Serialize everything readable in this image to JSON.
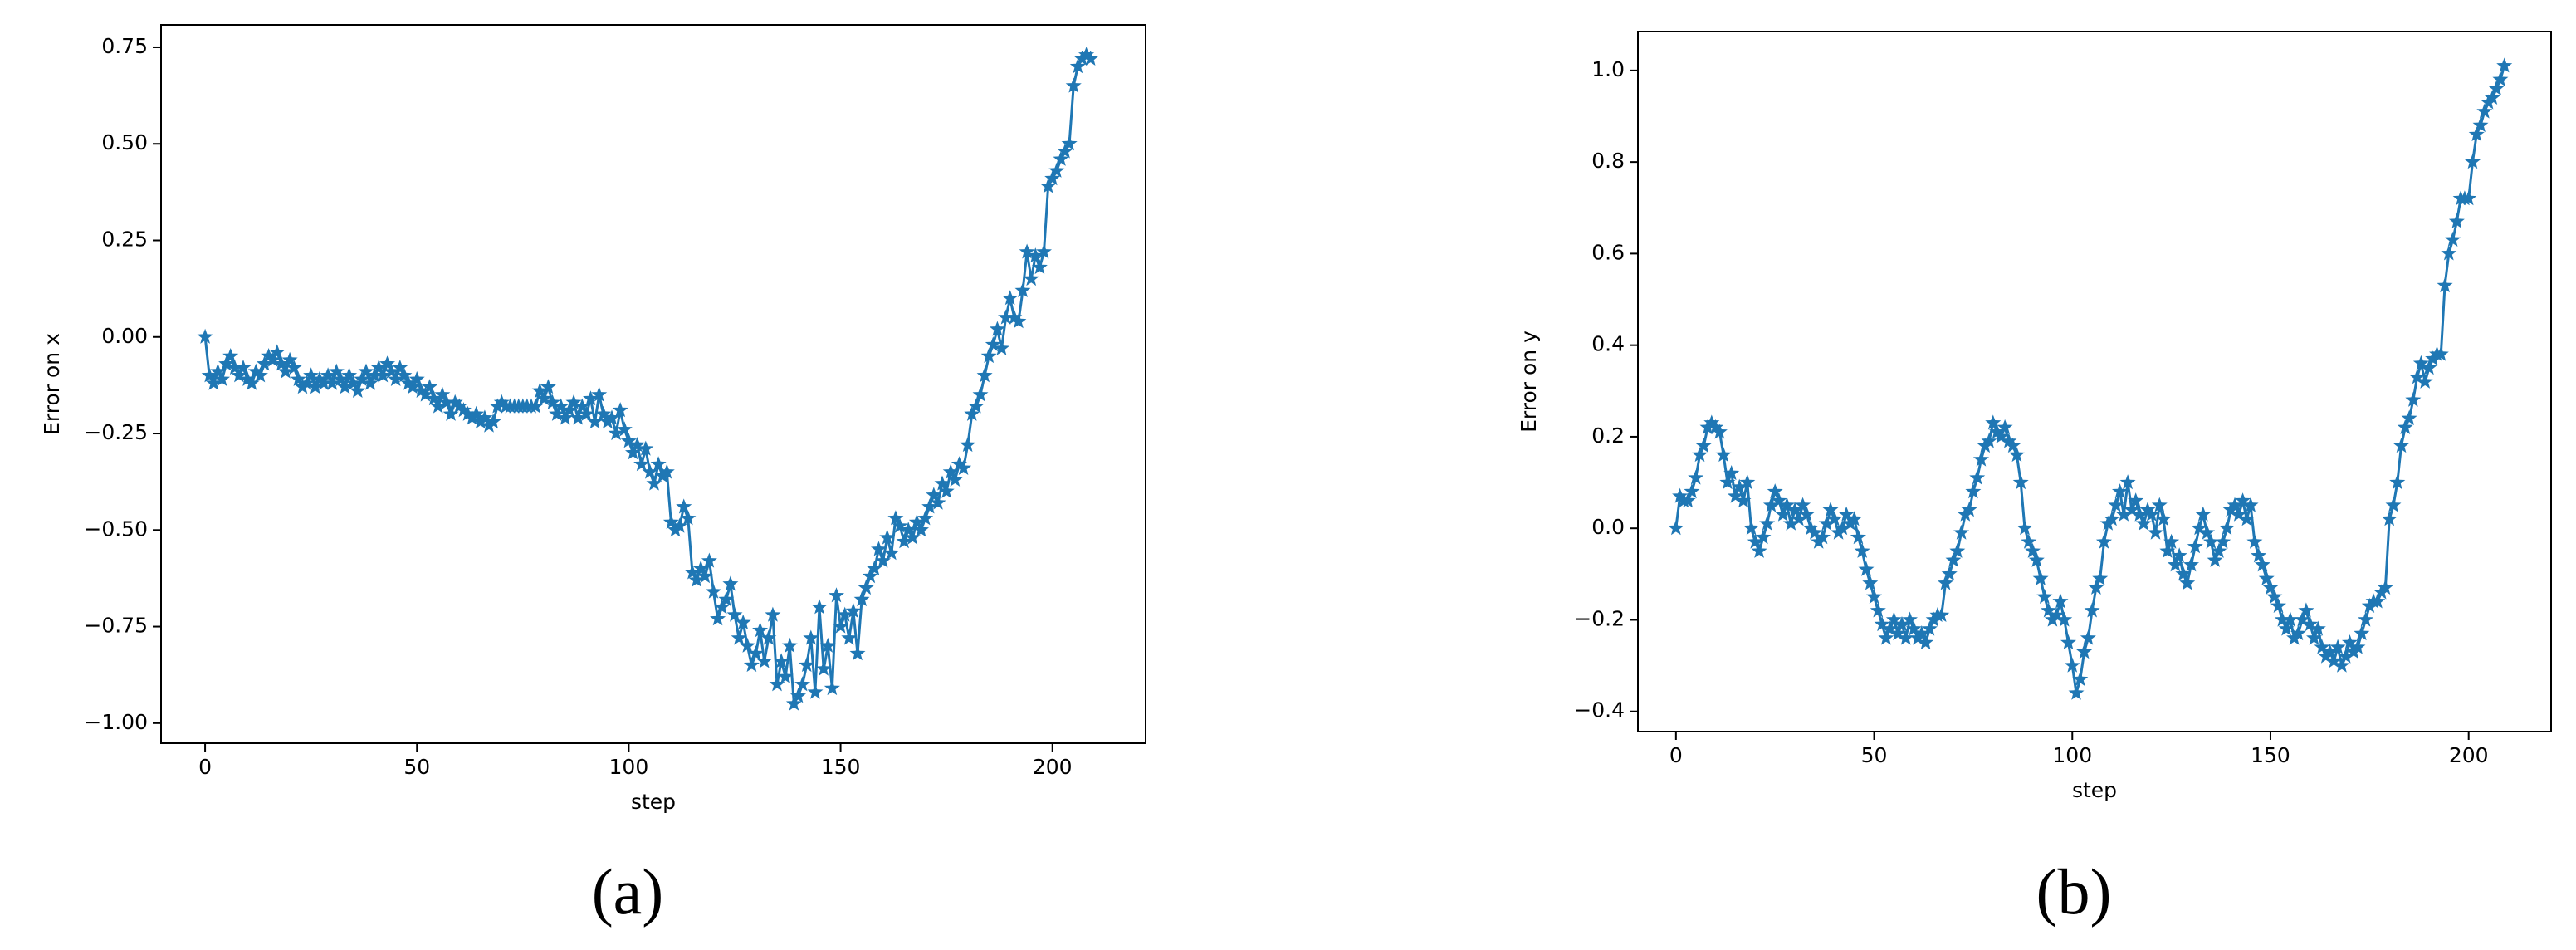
{
  "chart_data": [
    {
      "type": "line",
      "label": "(a)",
      "xlabel": "step",
      "ylabel": "Error on x",
      "marker": "star",
      "color": "#1f77b4",
      "xlim": [
        -10.4,
        222
      ],
      "ylim": [
        -1.052,
        0.808
      ],
      "xticks": [
        0,
        50,
        100,
        150,
        200
      ],
      "yticks": [
        {
          "value": -1,
          "label": "−1.00"
        },
        {
          "value": -0.75,
          "label": "−0.75"
        },
        {
          "value": -0.5,
          "label": "−0.50"
        },
        {
          "value": -0.25,
          "label": "−0.25"
        },
        {
          "value": 0,
          "label": "0.00"
        },
        0.25,
        {
          "value": 0.5,
          "label": "0.50"
        },
        0.75
      ],
      "x": [
        0,
        1,
        2,
        3,
        4,
        5,
        6,
        7,
        8,
        9,
        10,
        11,
        12,
        13,
        14,
        15,
        16,
        17,
        18,
        19,
        20,
        21,
        22,
        23,
        24,
        25,
        26,
        27,
        28,
        29,
        30,
        31,
        32,
        33,
        34,
        35,
        36,
        37,
        38,
        39,
        40,
        41,
        42,
        43,
        44,
        45,
        46,
        47,
        48,
        49,
        50,
        51,
        52,
        53,
        54,
        55,
        56,
        57,
        58,
        59,
        60,
        61,
        62,
        63,
        64,
        65,
        66,
        67,
        68,
        69,
        70,
        71,
        72,
        73,
        74,
        75,
        76,
        77,
        78,
        79,
        80,
        81,
        82,
        83,
        84,
        85,
        86,
        87,
        88,
        89,
        90,
        91,
        92,
        93,
        94,
        95,
        96,
        97,
        98,
        99,
        100,
        101,
        102,
        103,
        104,
        105,
        106,
        107,
        108,
        109,
        110,
        111,
        112,
        113,
        114,
        115,
        116,
        117,
        118,
        119,
        120,
        121,
        122,
        123,
        124,
        125,
        126,
        127,
        128,
        129,
        130,
        131,
        132,
        133,
        134,
        135,
        136,
        137,
        138,
        139,
        140,
        141,
        142,
        143,
        144,
        145,
        146,
        147,
        148,
        149,
        150,
        151,
        152,
        153,
        154,
        155,
        156,
        157,
        158,
        159,
        160,
        161,
        162,
        163,
        164,
        165,
        166,
        167,
        168,
        169,
        170,
        171,
        172,
        173,
        174,
        175,
        176,
        177,
        178,
        179,
        180,
        181,
        182,
        183,
        184,
        185,
        186,
        187,
        188,
        189,
        190,
        191,
        192,
        193,
        194,
        195,
        196,
        197,
        198,
        199,
        200,
        201,
        202,
        203,
        204,
        205,
        206,
        207,
        208,
        209
      ],
      "values": [
        0.0,
        -0.1,
        -0.12,
        -0.09,
        -0.11,
        -0.07,
        -0.05,
        -0.08,
        -0.1,
        -0.08,
        -0.11,
        -0.12,
        -0.09,
        -0.1,
        -0.07,
        -0.05,
        -0.06,
        -0.04,
        -0.07,
        -0.09,
        -0.06,
        -0.08,
        -0.11,
        -0.13,
        -0.12,
        -0.1,
        -0.13,
        -0.11,
        -0.12,
        -0.1,
        -0.12,
        -0.09,
        -0.11,
        -0.13,
        -0.1,
        -0.12,
        -0.14,
        -0.11,
        -0.09,
        -0.12,
        -0.1,
        -0.08,
        -0.1,
        -0.07,
        -0.09,
        -0.11,
        -0.08,
        -0.1,
        -0.12,
        -0.13,
        -0.11,
        -0.14,
        -0.15,
        -0.13,
        -0.16,
        -0.18,
        -0.15,
        -0.17,
        -0.2,
        -0.17,
        -0.18,
        -0.19,
        -0.2,
        -0.21,
        -0.2,
        -0.22,
        -0.21,
        -0.23,
        -0.22,
        -0.18,
        -0.17,
        -0.18,
        -0.18,
        -0.18,
        -0.18,
        -0.18,
        -0.18,
        -0.18,
        -0.18,
        -0.14,
        -0.16,
        -0.13,
        -0.17,
        -0.2,
        -0.18,
        -0.21,
        -0.19,
        -0.17,
        -0.21,
        -0.18,
        -0.2,
        -0.16,
        -0.22,
        -0.15,
        -0.2,
        -0.22,
        -0.21,
        -0.25,
        -0.19,
        -0.24,
        -0.27,
        -0.3,
        -0.28,
        -0.33,
        -0.29,
        -0.35,
        -0.38,
        -0.33,
        -0.36,
        -0.35,
        -0.48,
        -0.5,
        -0.49,
        -0.44,
        -0.47,
        -0.61,
        -0.63,
        -0.6,
        -0.62,
        -0.58,
        -0.66,
        -0.73,
        -0.7,
        -0.68,
        -0.64,
        -0.72,
        -0.78,
        -0.74,
        -0.8,
        -0.85,
        -0.82,
        -0.76,
        -0.84,
        -0.78,
        -0.72,
        -0.9,
        -0.84,
        -0.88,
        -0.8,
        -0.95,
        -0.93,
        -0.9,
        -0.85,
        -0.78,
        -0.92,
        -0.7,
        -0.86,
        -0.8,
        -0.91,
        -0.67,
        -0.75,
        -0.72,
        -0.78,
        -0.71,
        -0.82,
        -0.68,
        -0.65,
        -0.62,
        -0.6,
        -0.55,
        -0.58,
        -0.52,
        -0.56,
        -0.47,
        -0.49,
        -0.53,
        -0.5,
        -0.52,
        -0.48,
        -0.5,
        -0.47,
        -0.44,
        -0.41,
        -0.43,
        -0.38,
        -0.4,
        -0.35,
        -0.37,
        -0.33,
        -0.34,
        -0.28,
        -0.2,
        -0.18,
        -0.15,
        -0.1,
        -0.05,
        -0.02,
        0.02,
        -0.03,
        0.05,
        0.1,
        0.05,
        0.04,
        0.12,
        0.22,
        0.15,
        0.21,
        0.18,
        0.22,
        0.39,
        0.41,
        0.43,
        0.46,
        0.48,
        0.5,
        0.65,
        0.7,
        0.72,
        0.73,
        0.72
      ]
    },
    {
      "type": "line",
      "label": "(b)",
      "xlabel": "step",
      "ylabel": "Error on y",
      "marker": "star",
      "color": "#1f77b4",
      "xlim": [
        -9.6,
        220.8
      ],
      "ylim": [
        -0.444,
        1.085
      ],
      "xticks": [
        0,
        50,
        100,
        150,
        200
      ],
      "yticks": [
        {
          "value": -0.4,
          "label": "−0.4"
        },
        {
          "value": -0.2,
          "label": "−0.2"
        },
        {
          "value": 0,
          "label": "0.0"
        },
        0.2,
        0.4,
        0.6,
        0.8,
        {
          "value": 1,
          "label": "1.0"
        }
      ],
      "x": [
        0,
        1,
        2,
        3,
        4,
        5,
        6,
        7,
        8,
        9,
        10,
        11,
        12,
        13,
        14,
        15,
        16,
        17,
        18,
        19,
        20,
        21,
        22,
        23,
        24,
        25,
        26,
        27,
        28,
        29,
        30,
        31,
        32,
        33,
        34,
        35,
        36,
        37,
        38,
        39,
        40,
        41,
        42,
        43,
        44,
        45,
        46,
        47,
        48,
        49,
        50,
        51,
        52,
        53,
        54,
        55,
        56,
        57,
        58,
        59,
        60,
        61,
        62,
        63,
        64,
        65,
        66,
        67,
        68,
        69,
        70,
        71,
        72,
        73,
        74,
        75,
        76,
        77,
        78,
        79,
        80,
        81,
        82,
        83,
        84,
        85,
        86,
        87,
        88,
        89,
        90,
        91,
        92,
        93,
        94,
        95,
        96,
        97,
        98,
        99,
        100,
        101,
        102,
        103,
        104,
        105,
        106,
        107,
        108,
        109,
        110,
        111,
        112,
        113,
        114,
        115,
        116,
        117,
        118,
        119,
        120,
        121,
        122,
        123,
        124,
        125,
        126,
        127,
        128,
        129,
        130,
        131,
        132,
        133,
        134,
        135,
        136,
        137,
        138,
        139,
        140,
        141,
        142,
        143,
        144,
        145,
        146,
        147,
        148,
        149,
        150,
        151,
        152,
        153,
        154,
        155,
        156,
        157,
        158,
        159,
        160,
        161,
        162,
        163,
        164,
        165,
        166,
        167,
        168,
        169,
        170,
        171,
        172,
        173,
        174,
        175,
        176,
        177,
        178,
        179,
        180,
        181,
        182,
        183,
        184,
        185,
        186,
        187,
        188,
        189,
        190,
        191,
        192,
        193,
        194,
        195,
        196,
        197,
        198,
        199,
        200,
        201,
        202,
        203,
        204,
        205,
        206,
        207,
        208,
        209
      ],
      "values": [
        0.0,
        0.07,
        0.06,
        0.06,
        0.08,
        0.11,
        0.16,
        0.18,
        0.22,
        0.23,
        0.22,
        0.21,
        0.16,
        0.1,
        0.12,
        0.07,
        0.09,
        0.06,
        0.1,
        0.0,
        -0.03,
        -0.05,
        -0.02,
        0.01,
        0.05,
        0.08,
        0.06,
        0.03,
        0.05,
        0.01,
        0.04,
        0.02,
        0.05,
        0.03,
        0.0,
        -0.01,
        -0.03,
        -0.02,
        0.01,
        0.04,
        0.02,
        -0.01,
        0.0,
        0.03,
        0.01,
        0.02,
        -0.02,
        -0.05,
        -0.09,
        -0.12,
        -0.15,
        -0.18,
        -0.21,
        -0.24,
        -0.22,
        -0.2,
        -0.23,
        -0.21,
        -0.24,
        -0.2,
        -0.22,
        -0.24,
        -0.23,
        -0.25,
        -0.22,
        -0.2,
        -0.19,
        -0.19,
        -0.12,
        -0.1,
        -0.07,
        -0.05,
        -0.01,
        0.03,
        0.04,
        0.08,
        0.11,
        0.15,
        0.18,
        0.19,
        0.23,
        0.21,
        0.2,
        0.22,
        0.19,
        0.18,
        0.16,
        0.1,
        0.0,
        -0.03,
        -0.05,
        -0.07,
        -0.11,
        -0.15,
        -0.18,
        -0.2,
        -0.19,
        -0.16,
        -0.2,
        -0.25,
        -0.3,
        -0.36,
        -0.33,
        -0.27,
        -0.24,
        -0.18,
        -0.13,
        -0.11,
        -0.03,
        0.01,
        0.02,
        0.05,
        0.08,
        0.03,
        0.1,
        0.04,
        0.06,
        0.03,
        0.01,
        0.04,
        0.03,
        -0.01,
        0.05,
        0.02,
        -0.05,
        -0.03,
        -0.08,
        -0.06,
        -0.1,
        -0.12,
        -0.08,
        -0.04,
        0.0,
        0.03,
        -0.01,
        -0.03,
        -0.07,
        -0.05,
        -0.03,
        0.0,
        0.04,
        0.05,
        0.03,
        0.06,
        0.02,
        0.05,
        -0.03,
        -0.06,
        -0.08,
        -0.11,
        -0.13,
        -0.15,
        -0.17,
        -0.2,
        -0.22,
        -0.2,
        -0.24,
        -0.23,
        -0.2,
        -0.18,
        -0.21,
        -0.24,
        -0.22,
        -0.26,
        -0.28,
        -0.27,
        -0.29,
        -0.26,
        -0.3,
        -0.28,
        -0.25,
        -0.27,
        -0.26,
        -0.23,
        -0.2,
        -0.17,
        -0.16,
        -0.16,
        -0.14,
        -0.13,
        0.02,
        0.05,
        0.1,
        0.18,
        0.22,
        0.24,
        0.28,
        0.33,
        0.36,
        0.32,
        0.35,
        0.37,
        0.38,
        0.38,
        0.53,
        0.6,
        0.63,
        0.67,
        0.72,
        0.72,
        0.72,
        0.8,
        0.86,
        0.88,
        0.91,
        0.93,
        0.94,
        0.96,
        0.98,
        1.01
      ]
    }
  ]
}
